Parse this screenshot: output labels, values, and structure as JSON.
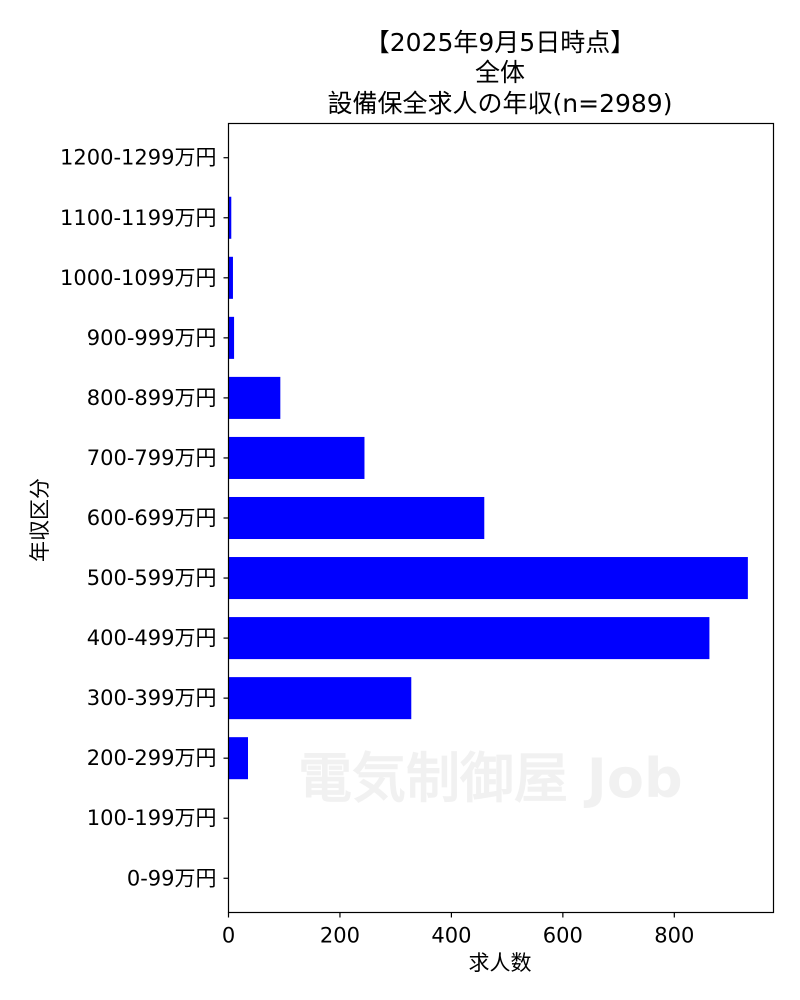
{
  "chart_data": {
    "type": "bar",
    "orientation": "horizontal",
    "title_lines": [
      "【2025年9月5日時点】",
      "全体",
      "設備保全求人の年収(n=2989)"
    ],
    "xlabel": "求人数",
    "ylabel": "年収区分",
    "categories": [
      "0-99万円",
      "100-199万円",
      "200-299万円",
      "300-399万円",
      "400-499万円",
      "500-599万円",
      "600-699万円",
      "700-799万円",
      "800-899万円",
      "900-999万円",
      "1000-1099万円",
      "1100-1199万円",
      "1200-1299万円"
    ],
    "values": [
      0,
      0,
      35,
      328,
      863,
      932,
      459,
      244,
      93,
      10,
      8,
      5,
      0
    ],
    "xlim": [
      0,
      978
    ],
    "xticks": [
      0,
      200,
      400,
      600,
      800
    ],
    "bar_color": "#0000ff",
    "grid": false,
    "legend": "none",
    "watermark": "電気制御屋 Job"
  }
}
